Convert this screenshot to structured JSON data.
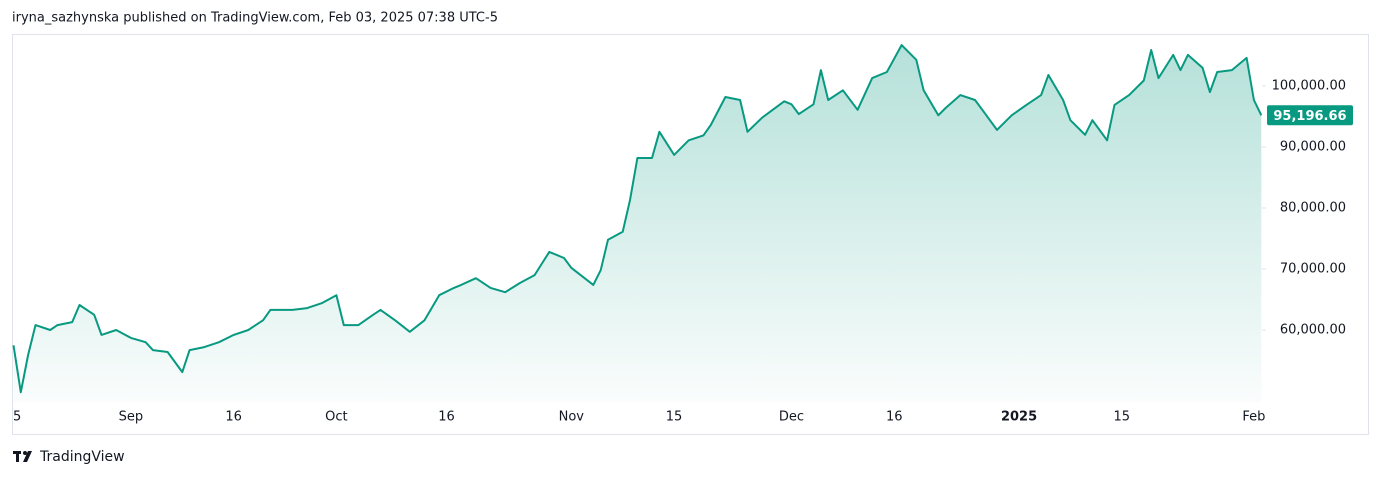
{
  "header": "iryna_sazhynska published on TradingView.com, Feb 03, 2025 07:38 UTC-5",
  "footer": "TradingView",
  "chart_data": {
    "type": "area",
    "x": [
      1,
      2,
      3,
      4,
      6,
      7,
      9,
      10,
      12,
      13,
      15,
      17,
      19,
      20,
      22,
      24,
      25,
      27,
      29,
      31,
      33,
      35,
      36,
      39,
      41,
      43,
      45,
      46,
      48,
      50,
      51,
      53,
      55,
      57,
      59,
      61,
      62,
      64,
      66,
      68,
      70,
      72,
      74,
      76,
      77,
      80,
      81,
      82,
      84,
      85,
      86,
      88,
      89,
      91,
      93,
      95,
      96,
      98,
      100,
      101,
      103,
      106,
      107,
      108,
      110,
      111,
      112,
      114,
      116,
      118,
      120,
      122,
      124,
      125,
      127,
      128,
      130,
      132,
      133,
      135,
      137,
      139,
      141,
      142,
      144,
      145,
      147,
      148,
      150,
      151,
      153,
      155,
      156,
      157,
      159,
      160,
      161,
      163,
      164,
      165,
      167,
      169,
      170,
      171
    ],
    "series": [
      {
        "color": "#089981",
        "values": [
          57500,
          49800,
          55900,
          60800,
          60000,
          60800,
          61300,
          64100,
          62500,
          59200,
          60000,
          58700,
          58000,
          56700,
          56400,
          53100,
          56700,
          57200,
          58000,
          59200,
          60000,
          61600,
          63300,
          63300,
          63600,
          64400,
          65700,
          60800,
          60800,
          62500,
          63300,
          61600,
          59700,
          61600,
          65700,
          66900,
          67400,
          68500,
          66900,
          66200,
          67700,
          69000,
          72800,
          71800,
          70200,
          67400,
          69800,
          74800,
          76100,
          81300,
          88200,
          88200,
          92500,
          88700,
          91100,
          91900,
          93600,
          98200,
          97700,
          92500,
          94800,
          97500,
          97000,
          95400,
          97000,
          102600,
          97700,
          99300,
          96100,
          101300,
          102300,
          106700,
          104300,
          99300,
          95200,
          96400,
          98500,
          97700,
          96100,
          92800,
          95200,
          96900,
          98500,
          101800,
          97700,
          94400,
          92000,
          94400,
          91100,
          96900,
          98500,
          100900,
          105900,
          101300,
          105100,
          102600,
          105100,
          103000,
          99000,
          102300,
          102600,
          104600,
          97700,
          95196.66
        ]
      }
    ],
    "last_price": 95196.66,
    "last_price_label": "95,196.66",
    "xlim": [
      0.8,
      171.1
    ],
    "xticks": [
      {
        "value": 1.5,
        "label": "5"
      },
      {
        "value": 17,
        "label": "Sep"
      },
      {
        "value": 31,
        "label": "16"
      },
      {
        "value": 45,
        "label": "Oct"
      },
      {
        "value": 60,
        "label": "16"
      },
      {
        "value": 77,
        "label": "Nov"
      },
      {
        "value": 91,
        "label": "15"
      },
      {
        "value": 107,
        "label": "Dec"
      },
      {
        "value": 121,
        "label": "16"
      },
      {
        "value": 138,
        "label": "2025",
        "bold": true
      },
      {
        "value": 152,
        "label": "15"
      },
      {
        "value": 170,
        "label": "Feb"
      }
    ],
    "ylim": [
      48200,
      108360
    ],
    "yticks": [
      {
        "value": 60000,
        "label": "60,000.00"
      },
      {
        "value": 70000,
        "label": "70,000.00"
      },
      {
        "value": 80000,
        "label": "80,000.00"
      },
      {
        "value": 90000,
        "label": "90,000.00"
      },
      {
        "value": 100000,
        "label": "100,000.00"
      }
    ]
  }
}
